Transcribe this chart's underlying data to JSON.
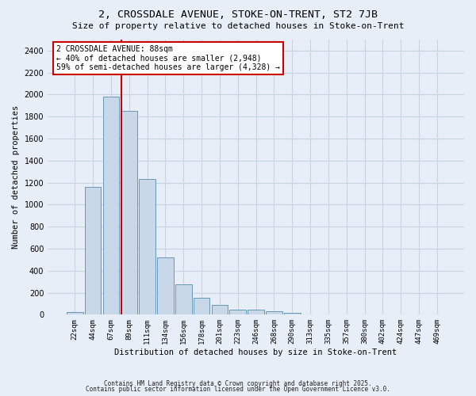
{
  "title": "2, CROSSDALE AVENUE, STOKE-ON-TRENT, ST2 7JB",
  "subtitle": "Size of property relative to detached houses in Stoke-on-Trent",
  "xlabel": "Distribution of detached houses by size in Stoke-on-Trent",
  "ylabel": "Number of detached properties",
  "bar_color": "#c8d8e8",
  "bar_edge_color": "#6898b8",
  "grid_color": "#c8d4e4",
  "bg_color": "#e8eef8",
  "annotation_box_color": "#cc0000",
  "marker_line_color": "#cc0000",
  "categories": [
    "22sqm",
    "44sqm",
    "67sqm",
    "89sqm",
    "111sqm",
    "134sqm",
    "156sqm",
    "178sqm",
    "201sqm",
    "223sqm",
    "246sqm",
    "268sqm",
    "290sqm",
    "313sqm",
    "335sqm",
    "357sqm",
    "380sqm",
    "402sqm",
    "424sqm",
    "447sqm",
    "469sqm"
  ],
  "values": [
    25,
    1160,
    1980,
    1850,
    1230,
    520,
    275,
    155,
    90,
    45,
    45,
    30,
    20,
    5,
    3,
    3,
    3,
    2,
    2,
    2,
    2
  ],
  "annotation_line1": "2 CROSSDALE AVENUE: 88sqm",
  "annotation_line2": "← 40% of detached houses are smaller (2,948)",
  "annotation_line3": "59% of semi-detached houses are larger (4,328) →",
  "marker_bin_index": 3,
  "ylim": [
    0,
    2500
  ],
  "yticks": [
    0,
    200,
    400,
    600,
    800,
    1000,
    1200,
    1400,
    1600,
    1800,
    2000,
    2200,
    2400
  ],
  "footnote1": "Contains HM Land Registry data © Crown copyright and database right 2025.",
  "footnote2": "Contains public sector information licensed under the Open Government Licence v3.0."
}
